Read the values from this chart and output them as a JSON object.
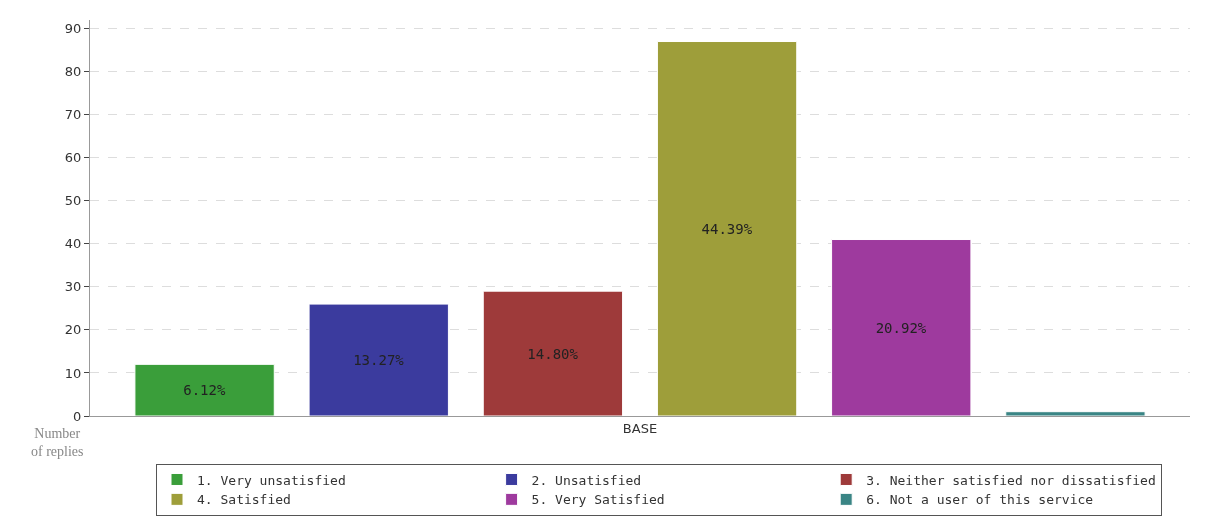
{
  "chart_data": {
    "type": "bar",
    "categories": [
      "BASE"
    ],
    "ylabel": "Number of replies",
    "ylim": [
      0,
      92
    ],
    "yticks": [
      0,
      10,
      20,
      30,
      40,
      50,
      60,
      70,
      80,
      90
    ],
    "grid": "y",
    "legend": "bottom",
    "annotations": [
      "6.12%",
      "13.27%",
      "14.80%",
      "44.39%",
      "20.92%"
    ],
    "series": [
      {
        "name": "1. Very unsatisfied",
        "color": "#3a9e3a",
        "values": [
          12
        ]
      },
      {
        "name": "2. Unsatisfied",
        "color": "#3b3b9e",
        "values": [
          26
        ]
      },
      {
        "name": "3. Neither satisfied nor dissatisfied",
        "color": "#9e3a3a",
        "values": [
          29
        ]
      },
      {
        "name": "4. Satisfied",
        "color": "#9e9e3a",
        "values": [
          87
        ]
      },
      {
        "name": "5. Very Satisfied",
        "color": "#9e3a9e",
        "values": [
          41
        ]
      },
      {
        "name": "6. Not a user of this service",
        "color": "#3a8585",
        "values": [
          1
        ]
      }
    ]
  }
}
